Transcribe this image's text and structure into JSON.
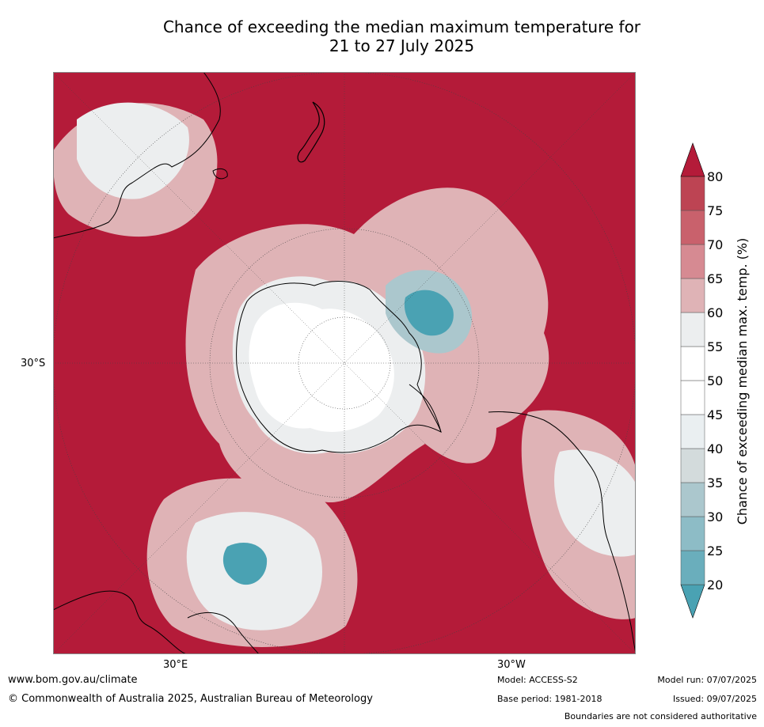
{
  "title": {
    "line1": "Chance of exceeding the median maximum temperature for",
    "line2": "21 to 27 July 2025"
  },
  "map": {
    "projection": "south-polar-stereographic",
    "lat_labels": [
      "30°S"
    ],
    "lon_labels": [
      "30°E",
      "30°W"
    ],
    "colors": {
      "very_high": "#b41b39",
      "high": "#c9616c",
      "mid_high": "#dfb3b6",
      "neutral": "#eceeef",
      "low": "#abc7cd",
      "very_low": "#4aa2b3",
      "land_outline": "#000000"
    }
  },
  "colorbar": {
    "label": "Chance of exceeding median max. temp. (%)",
    "ticks": [
      "20",
      "25",
      "30",
      "35",
      "40",
      "45",
      "50",
      "55",
      "60",
      "65",
      "70",
      "75",
      "80"
    ],
    "colors": [
      "#4aa2b3",
      "#6aaebc",
      "#8dbcc6",
      "#abc7cd",
      "#d3dbdc",
      "#eaeff1",
      "#ffffff",
      "#ffffff",
      "#eceeef",
      "#dfb3b6",
      "#d68a92",
      "#c9616c",
      "#bd4453",
      "#b41b39"
    ]
  },
  "footer": {
    "site": "www.bom.gov.au/climate",
    "copyright": "© Commonwealth of Australia 2025, Australian Bureau of Meteorology",
    "model": "Model: ACCESS-S2",
    "base_period": "Base period: 1981-2018",
    "model_run": "Model run: 07/07/2025",
    "issued": "Issued: 09/07/2025",
    "disclaimer": "Boundaries are not considered authoritative"
  }
}
